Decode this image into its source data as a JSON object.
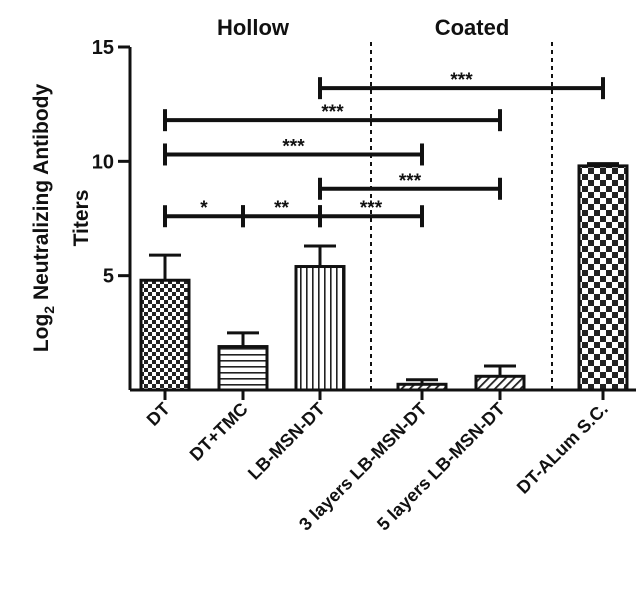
{
  "chart_data": {
    "type": "bar",
    "title": "",
    "ylabel_line1_prefix": "Log",
    "ylabel_line1_sub": "2",
    "ylabel_line1_rest": " Neutralizing Antibody",
    "ylabel_line2": "Titers",
    "xlabel": "",
    "ylim": [
      0,
      15
    ],
    "yticks": [
      "5",
      "10",
      "15"
    ],
    "grid": false,
    "groups": [
      {
        "label": "Hollow"
      },
      {
        "label": "Coated"
      }
    ],
    "categories": [
      "DT",
      "DT+TMC",
      "LB-MSN-DT",
      "3 layers LB-MSN-DT",
      "5 layers LB-MSN-DT",
      "DT-ALum S.C."
    ],
    "values": [
      4.8,
      1.9,
      5.4,
      0.25,
      0.6,
      9.8
    ],
    "errors": [
      1.1,
      0.6,
      0.9,
      0.2,
      0.45,
      0.1
    ],
    "patterns": [
      "checker-small",
      "horizontal-lines",
      "vertical-lines",
      "diagonal",
      "diagonal",
      "checker-large"
    ],
    "significance": [
      {
        "from": 2,
        "to": 5,
        "y": 13.2,
        "label": "***"
      },
      {
        "from": 0,
        "to": 4,
        "y": 11.8,
        "label": "***"
      },
      {
        "from": 0,
        "to": 3,
        "y": 10.3,
        "label": "***"
      },
      {
        "from": 2,
        "to": 4,
        "y": 8.8,
        "label": "***"
      },
      {
        "from": 0,
        "to": 1,
        "y": 7.6,
        "label": "*"
      },
      {
        "from": 1,
        "to": 2,
        "y": 7.6,
        "label": "**"
      },
      {
        "from": 2,
        "to": 3,
        "y": 7.6,
        "label": "***"
      }
    ]
  }
}
